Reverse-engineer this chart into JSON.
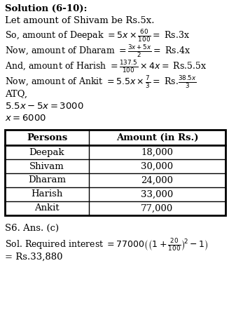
{
  "bg_color": "#ffffff",
  "table_headers": [
    "Persons",
    "Amount (in Rs.)"
  ],
  "table_rows": [
    [
      "Deepak",
      "18,000"
    ],
    [
      "Shivam",
      "30,000"
    ],
    [
      "Dharam",
      "24,000"
    ],
    [
      "Harish",
      "33,000"
    ],
    [
      "Ankit",
      "77,000"
    ]
  ]
}
